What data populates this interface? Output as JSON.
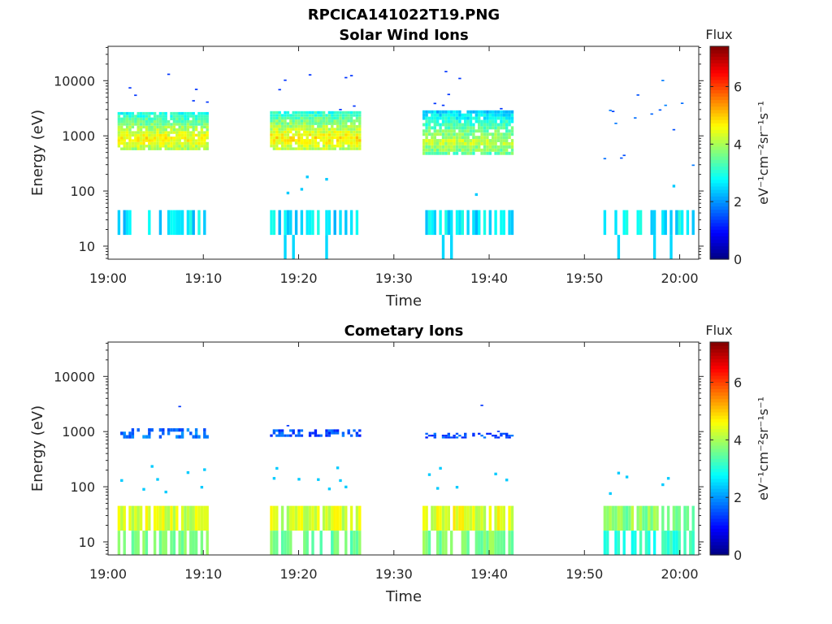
{
  "figure_title": "RPCICA141022T19.PNG",
  "colorbar": {
    "title": "Flux",
    "label": "eV⁻¹cm⁻²sr⁻¹s⁻¹",
    "ticks": [
      "0",
      "2",
      "4",
      "6"
    ],
    "range": [
      0,
      7.4
    ],
    "colormap": "jet"
  },
  "chart_data": [
    {
      "type": "heatmap",
      "title": "Solar Wind Ions",
      "xlabel": "Time",
      "ylabel": "Energy (eV)",
      "x_tick_labels": [
        "19:00",
        "19:10",
        "19:20",
        "19:30",
        "19:40",
        "19:50",
        "20:00"
      ],
      "x_range_minutes": [
        0,
        62
      ],
      "y_tick_labels": [
        "10",
        "100",
        "1000",
        "10000"
      ],
      "y_scale": "log",
      "y_range": [
        5.8,
        42000
      ],
      "bursts": [
        {
          "start": "19:01",
          "end": "19:10",
          "core_energy_ev": [
            550,
            2700
          ],
          "core_flux": 3.5,
          "low_energy_flux": 2.6
        },
        {
          "start": "19:17",
          "end": "19:26",
          "core_energy_ev": [
            550,
            2800
          ],
          "core_flux": 3.6,
          "low_energy_flux": 2.6
        },
        {
          "start": "19:33",
          "end": "19:42",
          "core_energy_ev": [
            450,
            2900
          ],
          "core_flux": 3.0,
          "low_energy_flux": 2.6
        },
        {
          "start": "19:52",
          "end": "20:01",
          "core_energy_ev": [],
          "core_flux": 1.5,
          "low_energy_flux": 2.7
        }
      ]
    },
    {
      "type": "heatmap",
      "title": "Cometary Ions",
      "xlabel": "Time",
      "ylabel": "Energy (eV)",
      "x_tick_labels": [
        "19:00",
        "19:10",
        "19:20",
        "19:30",
        "19:40",
        "19:50",
        "20:00"
      ],
      "x_range_minutes": [
        0,
        62
      ],
      "y_tick_labels": [
        "10",
        "100",
        "1000",
        "10000"
      ],
      "y_scale": "log",
      "y_range": [
        5.8,
        42000
      ],
      "bursts": [
        {
          "start": "19:01",
          "end": "19:10",
          "core_energy_ev": [
            750,
            1150
          ],
          "core_flux": 1.7,
          "low_energy_flux": 4.3
        },
        {
          "start": "19:17",
          "end": "19:26",
          "core_energy_ev": [
            800,
            1100
          ],
          "core_flux": 1.5,
          "low_energy_flux": 4.3
        },
        {
          "start": "19:33",
          "end": "19:42",
          "core_energy_ev": [
            750,
            950
          ],
          "core_flux": 1.5,
          "low_energy_flux": 4.4
        },
        {
          "start": "19:52",
          "end": "20:01",
          "core_energy_ev": [],
          "core_flux": 0,
          "low_energy_flux": 3.8
        }
      ]
    }
  ]
}
